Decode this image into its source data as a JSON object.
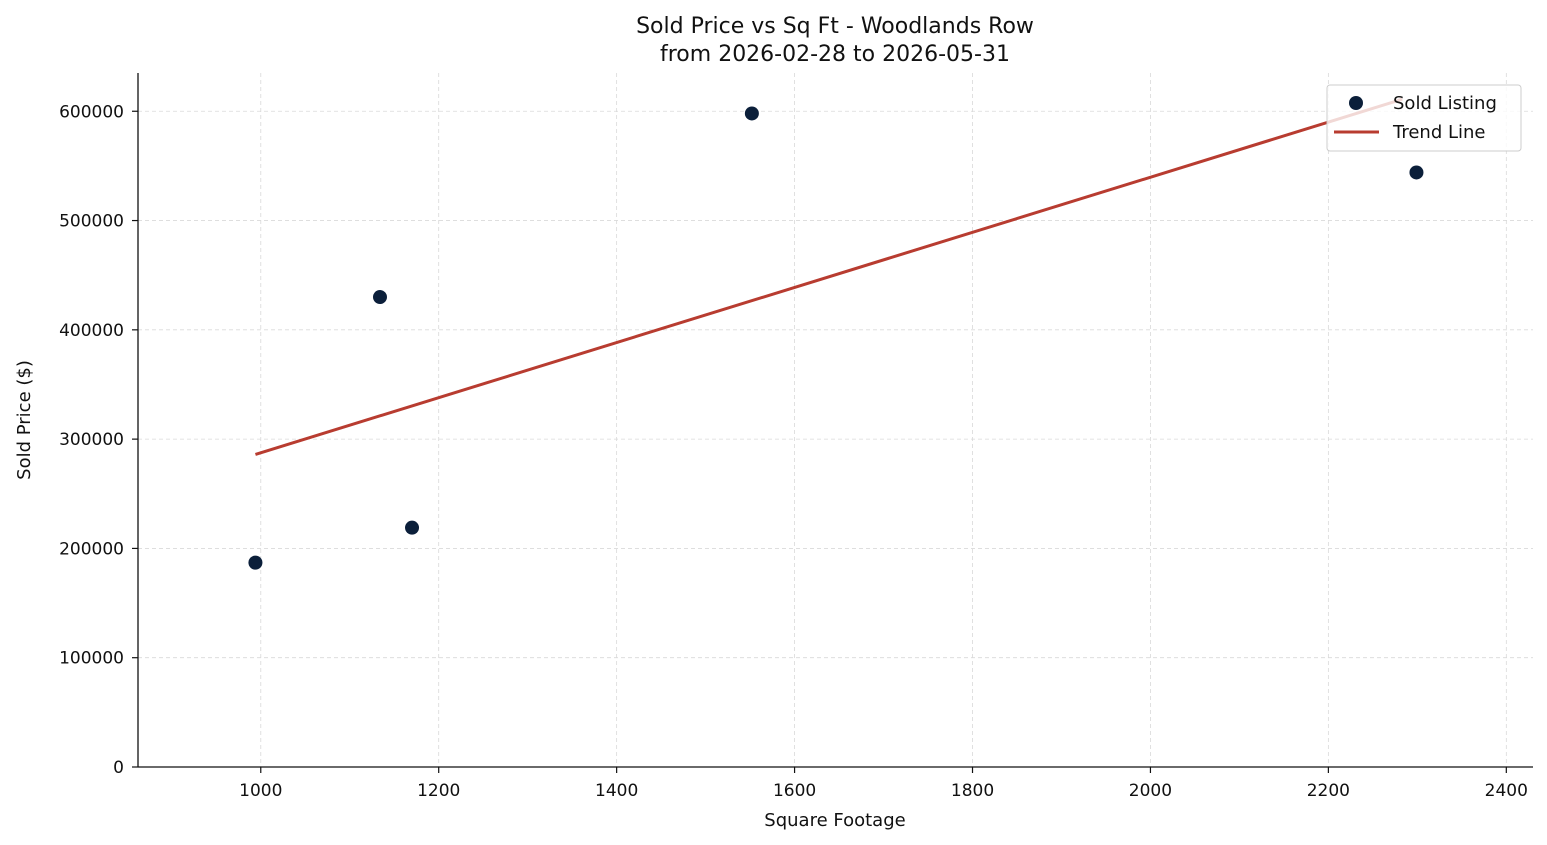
{
  "chart_data": {
    "type": "scatter",
    "title": "Sold Price vs Sq Ft - Woodlands Row",
    "subtitle": "from 2026-02-28 to 2026-05-31",
    "xlabel": "Square Footage",
    "ylabel": "Sold Price ($)",
    "xlim": [
      862,
      2430
    ],
    "ylim": [
      0,
      635000
    ],
    "xticks": [
      1000,
      1200,
      1400,
      1600,
      1800,
      2000,
      2200,
      2400
    ],
    "yticks": [
      0,
      100000,
      200000,
      300000,
      400000,
      500000,
      600000
    ],
    "grid": true,
    "legend_position": "top-right",
    "series": [
      {
        "name": "Sold Listing",
        "kind": "scatter",
        "color": "#0b1f3a",
        "points": [
          {
            "x": 994,
            "y": 187000
          },
          {
            "x": 1134,
            "y": 430000
          },
          {
            "x": 1170,
            "y": 219000
          },
          {
            "x": 1552,
            "y": 598000
          },
          {
            "x": 2299,
            "y": 544000
          }
        ]
      },
      {
        "name": "Trend Line",
        "kind": "line",
        "color": "#b83c30",
        "points": [
          {
            "x": 994,
            "y": 286000
          },
          {
            "x": 2283,
            "y": 611000
          }
        ]
      }
    ]
  }
}
